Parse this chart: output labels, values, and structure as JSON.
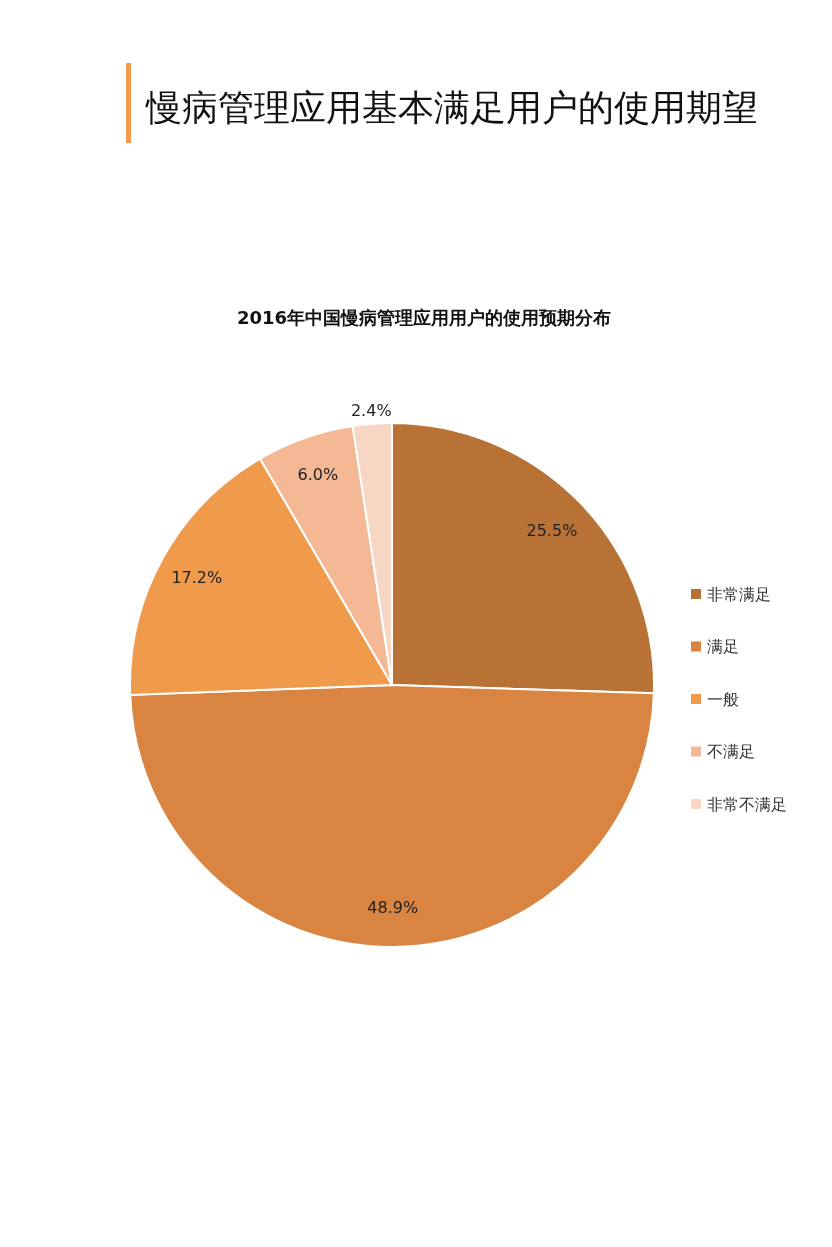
{
  "chart_data": {
    "type": "pie",
    "title": "慢病管理应用基本满足用户的使用期望",
    "subtitle": "2016年中国慢病管理应用用户的使用预期分布",
    "categories": [
      "非常满足",
      "满足",
      "一般",
      "不满足",
      "非常不满足"
    ],
    "values": [
      25.5,
      48.9,
      17.2,
      6.0,
      2.4
    ],
    "colors": [
      "#b87236",
      "#d98440",
      "#f09a4c",
      "#f4b994",
      "#f8d6c4"
    ],
    "value_labels": [
      "25.5%",
      "48.9%",
      "17.2%",
      "6.0%",
      "2.4%"
    ],
    "legend": "right"
  }
}
